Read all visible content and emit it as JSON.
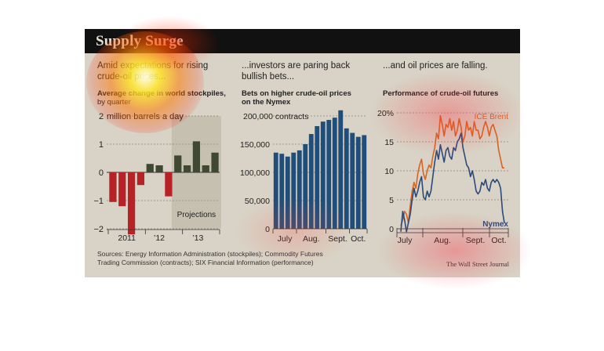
{
  "banner": {
    "title": "Supply Surge"
  },
  "panels": [
    {
      "headline": [
        "Amid expectations for rising",
        "crude-oil prices..."
      ],
      "subtitle_bold": "Average change in world stockpiles,",
      "subtitle_rest": "by quarter"
    },
    {
      "headline": [
        "...investors are paring back",
        "bullish bets..."
      ],
      "subtitle_bold": "Bets on higher crude-oil prices",
      "subtitle_rest": "on the Nymex"
    },
    {
      "headline": [
        "...and oil prices are falling."
      ],
      "subtitle_bold": "Performance of crude-oil futures",
      "subtitle_rest": ""
    }
  ],
  "footer": {
    "sources": [
      "Sources: Energy Information Administration (stockpiles); Commodity Futures",
      "Trading Commission (contracts); SIX Financial Information (performance)"
    ],
    "brand": "The Wall Street Journal"
  },
  "colors": {
    "background": "#d8d3c6",
    "negative": "#b82227",
    "positive": "#3f4833",
    "projection_shade": "#c6c0b0",
    "bars": "#1f4e7a",
    "brent": "#d8641f",
    "nymex": "#2b4a7a",
    "banner": "#111111"
  },
  "chart_data": [
    {
      "type": "bar",
      "title": "Average change in world stockpiles, by quarter",
      "unit_label": "2 million barrels a day",
      "ylim": [
        -2,
        2
      ],
      "yticks": [
        "2",
        "1",
        "0",
        "−1",
        "−2"
      ],
      "xtick_labels": [
        "2011",
        "’12",
        "’13"
      ],
      "annotation": "Projections",
      "values": [
        -1.05,
        -1.2,
        -2.2,
        -0.45,
        0.3,
        0.25,
        -0.85,
        0.6,
        0.25,
        1.1,
        0.25,
        0.7
      ],
      "projection_from_index": 7,
      "grid": true
    },
    {
      "type": "bar",
      "title": "Bets on higher crude-oil prices on the Nymex",
      "unit_label": "200,000 contracts",
      "ylim": [
        0,
        200000
      ],
      "yticks": [
        "200,000",
        "150,000",
        "100,000",
        "50,000",
        "0"
      ],
      "xtick_labels": [
        "July",
        "Aug.",
        "Sept.",
        "Oct."
      ],
      "values": [
        135000,
        133000,
        128000,
        135000,
        139000,
        150000,
        168000,
        182000,
        190000,
        193000,
        197000,
        210000,
        178000,
        170000,
        163000,
        166000
      ],
      "grid": true
    },
    {
      "type": "line",
      "title": "Performance of crude-oil futures",
      "ylim": [
        0,
        20
      ],
      "yticks": [
        "20%",
        "15",
        "10",
        "5",
        "0"
      ],
      "xtick_labels": [
        "July",
        "Aug.",
        "Sept.",
        "Oct."
      ],
      "grid": true,
      "series": [
        {
          "name": "ICE Brent",
          "values": [
            0.5,
            1.5,
            3,
            2.5,
            1,
            4,
            6.5,
            8,
            7,
            9.5,
            11,
            12,
            9.5,
            8.5,
            10,
            11,
            10.5,
            12.5,
            14,
            16.5,
            15.5,
            19.5,
            18,
            16,
            18,
            17.5,
            19,
            17,
            18.5,
            16,
            17,
            19,
            17.5,
            15,
            16,
            18.5,
            17,
            17.5,
            16,
            18.5,
            17,
            17,
            15.5,
            16,
            17.5,
            18.5,
            17.5,
            16,
            17.5,
            18,
            17,
            16,
            13.5,
            12,
            10.5,
            10.5
          ]
        },
        {
          "name": "Nymex",
          "values": [
            -0.5,
            3,
            1.5,
            -0.5,
            1,
            2.5,
            5,
            7,
            5.5,
            6.5,
            8,
            9,
            5.5,
            5,
            6.5,
            5.5,
            6.5,
            9,
            11.5,
            13.5,
            12,
            14.5,
            13,
            11.5,
            13.5,
            14,
            12.5,
            12,
            14,
            13.5,
            15,
            15.5,
            16.5,
            14,
            12.5,
            11,
            10.5,
            9,
            10,
            8.5,
            6.5,
            6,
            6.5,
            8,
            7.5,
            8.5,
            7,
            6.5,
            8,
            8.5,
            8,
            8.5,
            8,
            7,
            3,
            1
          ]
        }
      ]
    }
  ]
}
